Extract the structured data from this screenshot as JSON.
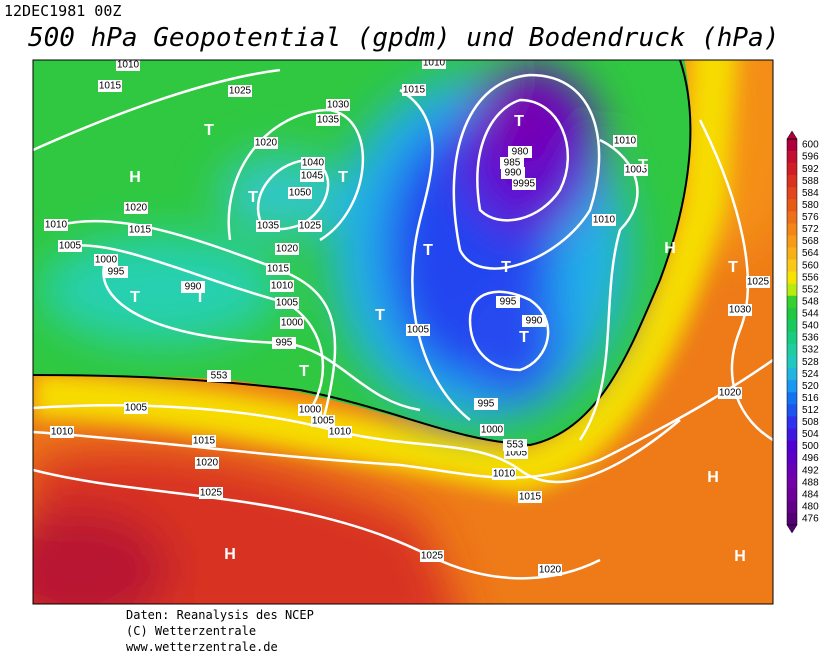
{
  "header": {
    "date": "12DEC1981 00Z",
    "title": "500 hPa Geopotential (gpdm) und Bodendruck (hPa)"
  },
  "colorbar": {
    "levels": [
      600,
      596,
      592,
      588,
      584,
      580,
      576,
      572,
      568,
      564,
      560,
      556,
      552,
      548,
      544,
      540,
      536,
      532,
      528,
      524,
      520,
      516,
      512,
      508,
      504,
      500,
      496,
      492,
      488,
      484,
      480,
      476
    ],
    "colors": [
      "#b0003c",
      "#c41030",
      "#d01e24",
      "#da3220",
      "#e2461c",
      "#e85a18",
      "#ee7018",
      "#f28418",
      "#f69a18",
      "#f8b018",
      "#fac818",
      "#f6e400",
      "#b8ec10",
      "#38d030",
      "#20c840",
      "#18c860",
      "#18cc80",
      "#20cca0",
      "#20c8c0",
      "#20b4e0",
      "#1898f0",
      "#1474f0",
      "#1c54f0",
      "#3030f0",
      "#4018e0",
      "#5000d0",
      "#5c00c4",
      "#6a00b4",
      "#7400a8",
      "#6e0098",
      "#620088",
      "#540074"
    ]
  },
  "map": {
    "isobar_labels": [
      "1010",
      "1015",
      "1025",
      "1020",
      "1030",
      "1035",
      "1040",
      "1045",
      "1050",
      "1035",
      "1025",
      "1020",
      "1015",
      "1010",
      "1005",
      "1000",
      "995",
      "1020",
      "1015",
      "1010",
      "1005",
      "1000",
      "995",
      "990",
      "1015",
      "1010",
      "1010",
      "1005",
      "980",
      "985",
      "990",
      "9995",
      "1010",
      "995",
      "990",
      "1005",
      "1000",
      "1005",
      "1010",
      "995",
      "1000",
      "1005",
      "1010",
      "1015",
      "1005",
      "1010",
      "1015",
      "1020",
      "1025",
      "1025",
      "1020",
      "1020",
      "1030",
      "1025",
      "553",
      "553"
    ],
    "pressure_centers": [
      "T",
      "H",
      "T",
      "T",
      "T",
      "T",
      "T",
      "T",
      "H",
      "T",
      "T",
      "T",
      "T",
      "T",
      "T",
      "H",
      "H",
      "H"
    ]
  },
  "footer": {
    "lines": [
      "Daten: Reanalysis des NCEP",
      "(C) Wetterzentrale",
      "www.wetterzentrale.de"
    ]
  }
}
